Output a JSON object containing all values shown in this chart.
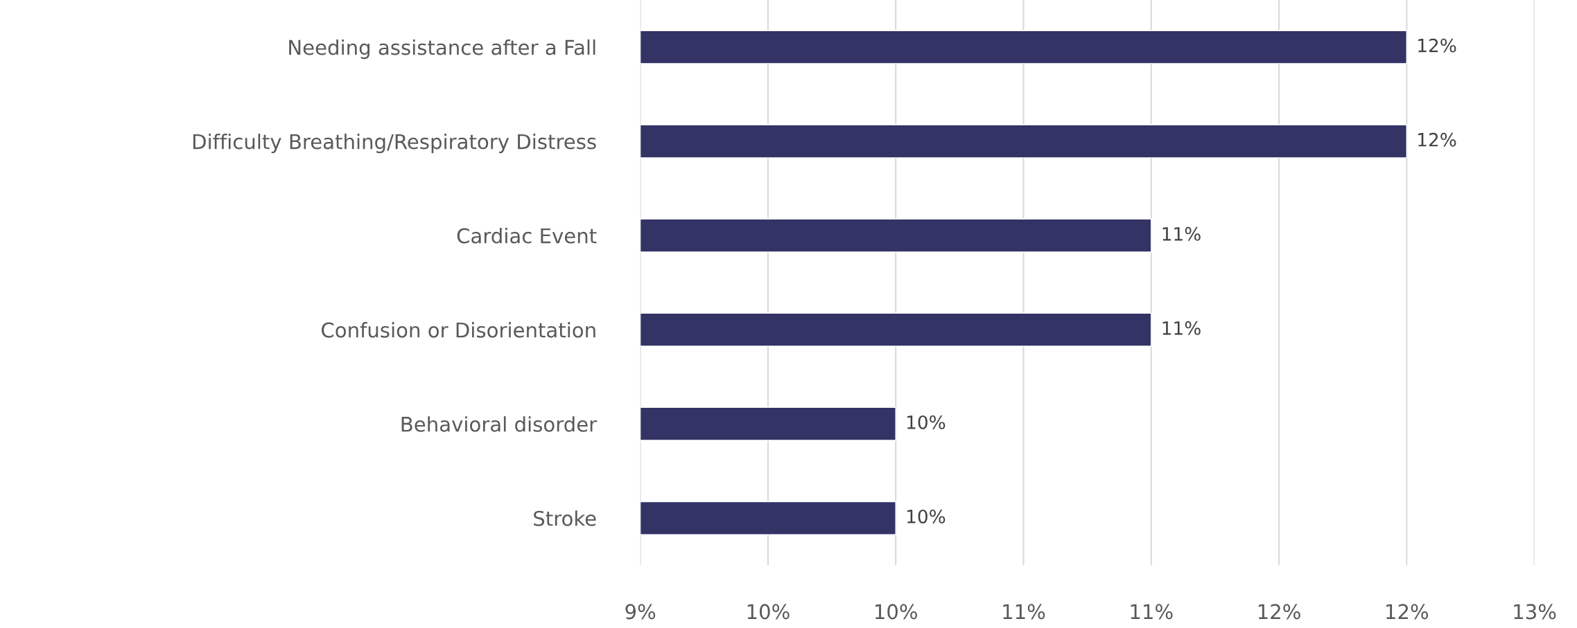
{
  "chart_data": {
    "type": "bar",
    "orientation": "horizontal",
    "categories": [
      "Needing assistance after a Fall",
      "Difficulty Breathing/Respiratory Distress",
      "Cardiac Event",
      "Confusion or Disorientation",
      "Behavioral disorder",
      "Stroke"
    ],
    "values": [
      12,
      12,
      11,
      11,
      10,
      10
    ],
    "value_labels": [
      "12%",
      "12%",
      "11%",
      "11%",
      "10%",
      "10%"
    ],
    "color": "#333366",
    "xlim": [
      9,
      12.5
    ],
    "xticks": [
      {
        "value": 9,
        "label": "9%"
      },
      {
        "value": 9.5,
        "label": "10%"
      },
      {
        "value": 10,
        "label": "10%"
      },
      {
        "value": 10.5,
        "label": "11%"
      },
      {
        "value": 11,
        "label": "11%"
      },
      {
        "value": 11.5,
        "label": "12%"
      },
      {
        "value": 12,
        "label": "12%"
      },
      {
        "value": 12.5,
        "label": "13%"
      }
    ],
    "grid": "x",
    "legend": false
  }
}
